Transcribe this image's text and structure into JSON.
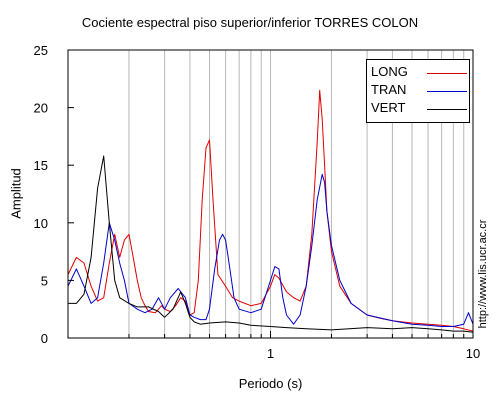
{
  "chart_data": {
    "type": "line",
    "title": "Cociente espectral piso superior/inferior  TORRES COLON",
    "xlabel": "Periodo (s)",
    "ylabel": "Amplitud",
    "xscale": "log",
    "xlim": [
      0.1,
      10
    ],
    "ylim": [
      0,
      25
    ],
    "xticks": [
      1,
      10
    ],
    "yticks": [
      0,
      5,
      10,
      15,
      20,
      25
    ],
    "grid": true,
    "legend_position": "top-right",
    "series": [
      {
        "name": "LONG",
        "color": "#e00000",
        "x": [
          0.1,
          0.11,
          0.12,
          0.13,
          0.14,
          0.15,
          0.16,
          0.17,
          0.18,
          0.19,
          0.2,
          0.21,
          0.22,
          0.23,
          0.24,
          0.25,
          0.27,
          0.29,
          0.3,
          0.32,
          0.34,
          0.36,
          0.38,
          0.4,
          0.42,
          0.44,
          0.46,
          0.48,
          0.5,
          0.52,
          0.55,
          0.6,
          0.65,
          0.7,
          0.8,
          0.9,
          1.0,
          1.05,
          1.1,
          1.2,
          1.3,
          1.4,
          1.5,
          1.6,
          1.7,
          1.75,
          1.8,
          1.85,
          1.9,
          2.0,
          2.2,
          2.5,
          3.0,
          3.5,
          4.0,
          5.0,
          6.0,
          7.0,
          8.0,
          9.0,
          10.0
        ],
        "y": [
          5.5,
          7.0,
          6.5,
          4.5,
          3.2,
          3.5,
          6.5,
          9.0,
          7.0,
          8.5,
          9.0,
          7.0,
          5.0,
          3.5,
          2.8,
          2.3,
          2.2,
          2.8,
          2.5,
          2.3,
          2.8,
          3.5,
          3.2,
          2.0,
          2.2,
          5.0,
          12.0,
          16.5,
          17.2,
          12.0,
          5.5,
          4.5,
          3.5,
          3.2,
          2.8,
          3.0,
          4.5,
          5.5,
          5.2,
          4.0,
          3.5,
          3.2,
          4.5,
          9.0,
          17.0,
          21.5,
          19.0,
          15.0,
          11.0,
          7.5,
          4.5,
          3.0,
          2.0,
          1.7,
          1.5,
          1.3,
          1.2,
          1.1,
          1.0,
          0.8,
          0.6
        ]
      },
      {
        "name": "TRAN",
        "color": "#0000cc",
        "x": [
          0.1,
          0.11,
          0.12,
          0.13,
          0.14,
          0.15,
          0.16,
          0.17,
          0.18,
          0.19,
          0.2,
          0.22,
          0.24,
          0.26,
          0.28,
          0.3,
          0.32,
          0.35,
          0.38,
          0.4,
          0.42,
          0.45,
          0.48,
          0.5,
          0.53,
          0.56,
          0.58,
          0.6,
          0.63,
          0.66,
          0.7,
          0.8,
          0.9,
          1.0,
          1.05,
          1.1,
          1.15,
          1.2,
          1.3,
          1.4,
          1.5,
          1.6,
          1.7,
          1.8,
          1.85,
          1.9,
          2.0,
          2.2,
          2.5,
          3.0,
          4.0,
          5.0,
          6.0,
          7.0,
          8.0,
          9.0,
          9.5,
          10.0
        ],
        "y": [
          4.5,
          6.0,
          4.5,
          3.0,
          3.5,
          6.5,
          10.0,
          8.5,
          6.5,
          5.0,
          3.0,
          2.5,
          2.2,
          2.5,
          3.5,
          2.5,
          3.5,
          4.3,
          3.5,
          2.0,
          1.8,
          1.6,
          1.6,
          2.5,
          6.0,
          8.5,
          9.0,
          8.5,
          6.0,
          3.5,
          2.5,
          2.2,
          2.5,
          5.0,
          6.2,
          6.0,
          3.5,
          2.0,
          1.2,
          2.0,
          4.5,
          8.0,
          12.0,
          14.2,
          13.5,
          11.0,
          8.0,
          5.0,
          3.0,
          2.0,
          1.5,
          1.2,
          1.1,
          1.0,
          1.0,
          1.2,
          2.2,
          1.2
        ]
      },
      {
        "name": "VERT",
        "color": "#000000",
        "x": [
          0.1,
          0.11,
          0.12,
          0.13,
          0.14,
          0.15,
          0.16,
          0.17,
          0.18,
          0.2,
          0.22,
          0.25,
          0.28,
          0.3,
          0.33,
          0.36,
          0.38,
          0.4,
          0.42,
          0.45,
          0.5,
          0.6,
          0.7,
          0.8,
          1.0,
          1.2,
          1.5,
          2.0,
          3.0,
          4.0,
          5.0,
          6.0,
          7.0,
          8.0,
          9.0,
          10.0
        ],
        "y": [
          3.0,
          3.0,
          3.8,
          7.0,
          13.0,
          15.8,
          10.0,
          5.0,
          3.5,
          3.0,
          2.7,
          2.7,
          2.3,
          1.8,
          2.5,
          4.0,
          3.0,
          1.8,
          1.4,
          1.2,
          1.3,
          1.4,
          1.3,
          1.1,
          1.0,
          0.9,
          0.8,
          0.7,
          0.9,
          0.8,
          0.9,
          0.8,
          0.7,
          0.6,
          0.6,
          0.5
        ]
      }
    ]
  },
  "credit": "http://www.lis.ucr.ac.cr"
}
